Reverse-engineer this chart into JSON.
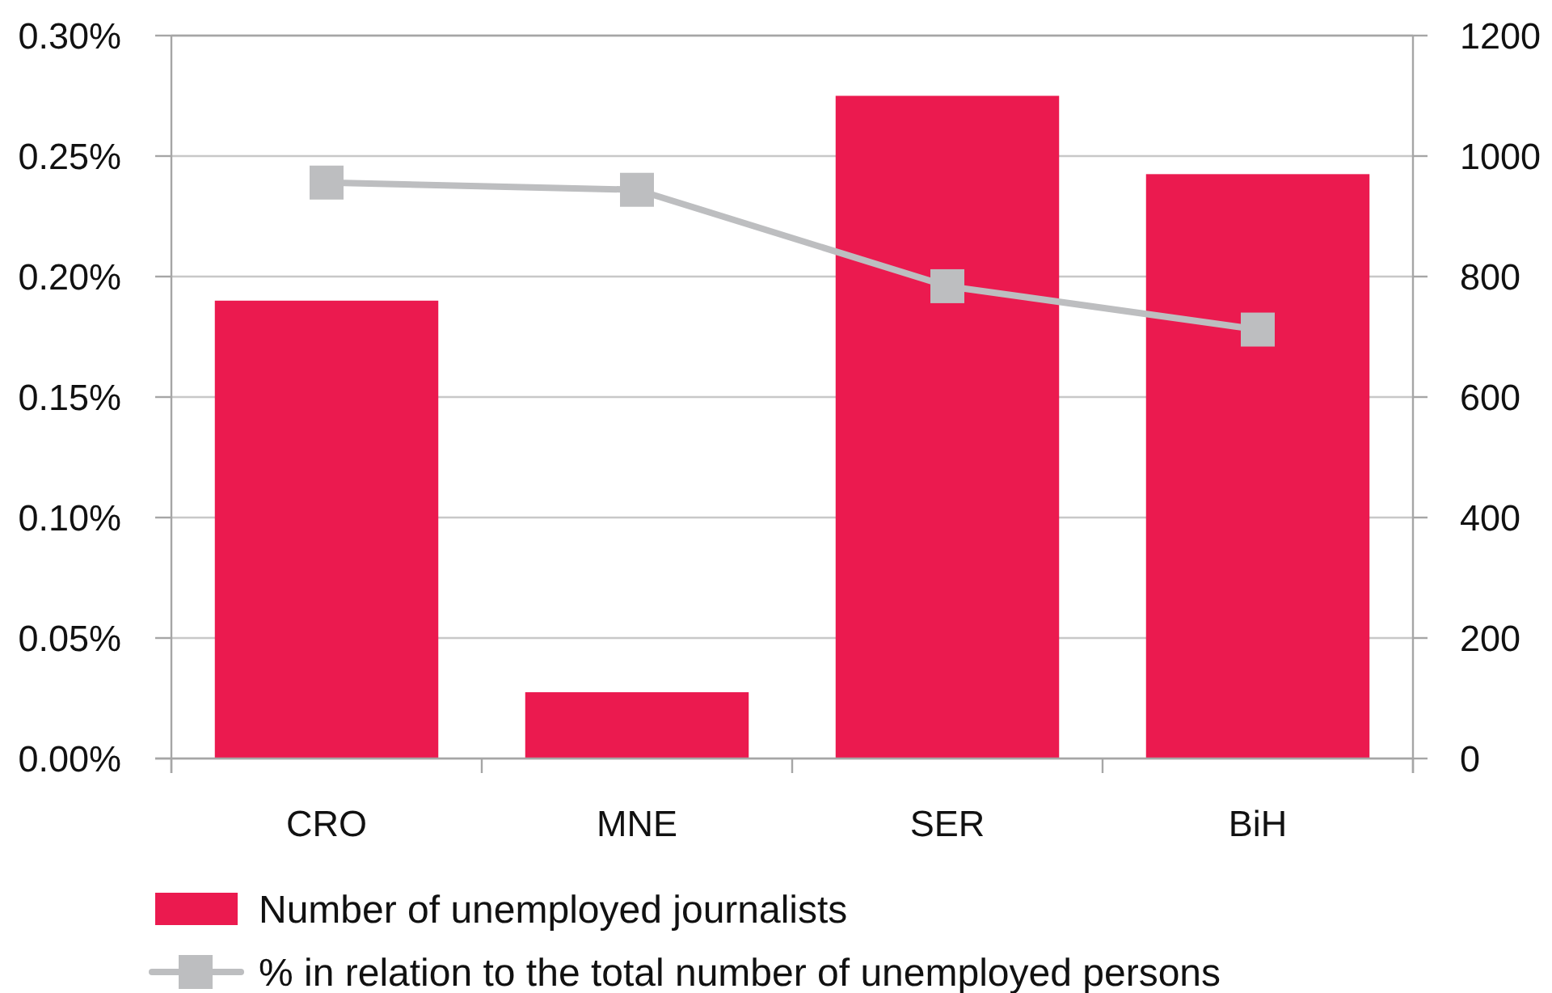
{
  "chart_data": {
    "type": "bar",
    "categories": [
      "CRO",
      "MNE",
      "SER",
      "BiH"
    ],
    "series": [
      {
        "name": "Number of unemployed journalists",
        "axis": "y2",
        "color": "#eb1a4f",
        "values": [
          760,
          110,
          1100,
          970
        ]
      },
      {
        "name": "% in relation to the total number of unemployed persons",
        "type": "line",
        "color": "#bdbec0",
        "values": [
          0.239,
          0.236,
          0.196,
          0.178
        ]
      }
    ],
    "marker": "square",
    "ylim": [
      0,
      0.3
    ],
    "yticks": [
      {
        "value": 0,
        "label": "0.00%"
      },
      {
        "value": 0.05,
        "label": "0.05%"
      },
      {
        "value": 0.1,
        "label": "0.10%"
      },
      {
        "value": 0.15,
        "label": "0.15%"
      },
      {
        "value": 0.2,
        "label": "0.20%"
      },
      {
        "value": 0.25,
        "label": "0.25%"
      },
      {
        "value": 0.3,
        "label": "0.30%"
      }
    ],
    "y2lim": [
      0,
      1200
    ],
    "y2ticks": [
      0,
      200,
      400,
      600,
      800,
      1000,
      1200
    ],
    "grid": "y",
    "legend": "bottom"
  }
}
